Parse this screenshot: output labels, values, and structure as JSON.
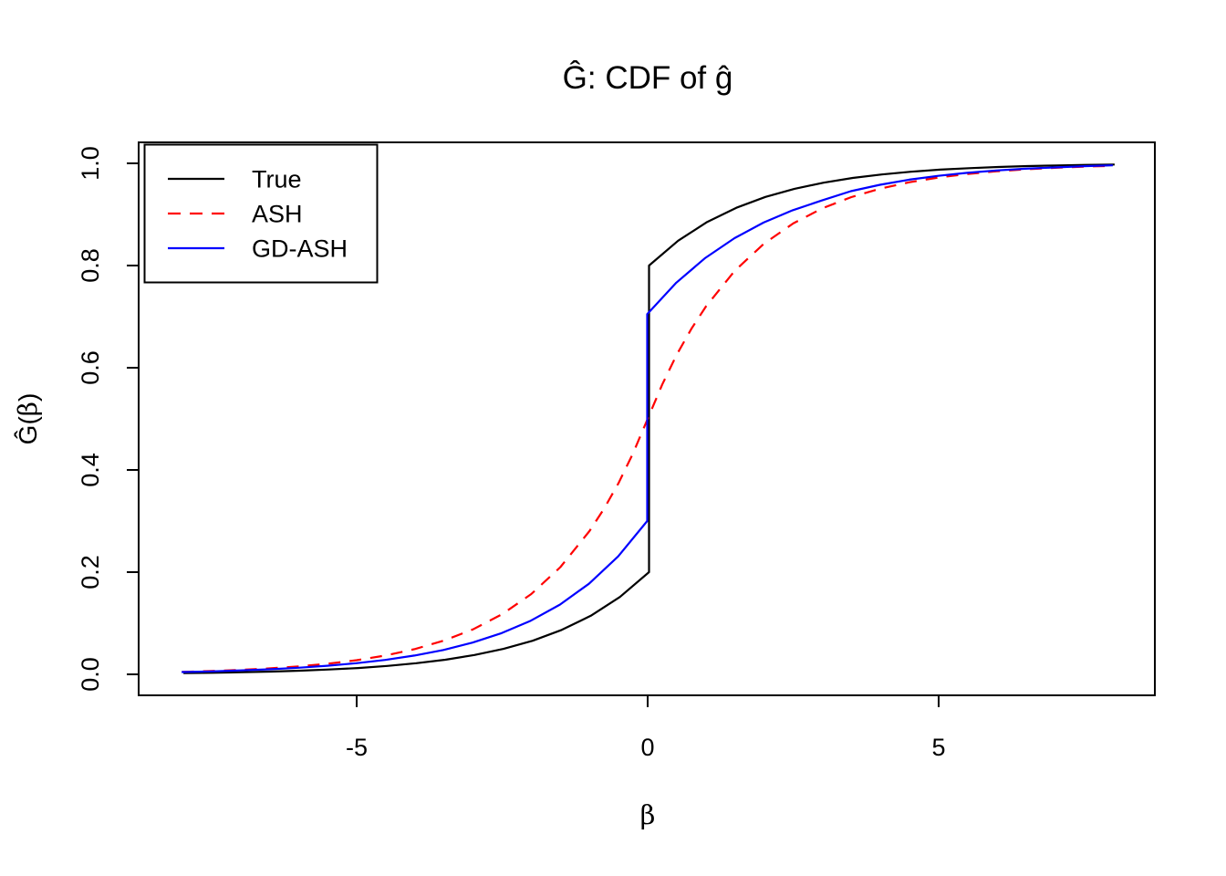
{
  "figure": {
    "title": "Ĝ: CDF of ĝ",
    "background": "#FFFFFF",
    "frame_color": "#000000"
  },
  "axes": {
    "x_label": "β",
    "y_label": "Ĝ(β)",
    "y_label_prefix": "Ĝ(",
    "y_label_beta": "β",
    "y_label_suffix": ")",
    "x_ticks": [
      "-5",
      "0",
      "5"
    ],
    "x_tick_values": [
      -5,
      0,
      5
    ],
    "y_ticks": [
      "0.0",
      "0.2",
      "0.4",
      "0.6",
      "0.8",
      "1.0"
    ],
    "y_tick_values": [
      0,
      0.2,
      0.4,
      0.6,
      0.8,
      1.0
    ]
  },
  "legend": {
    "position": "top-left",
    "entries": [
      {
        "label": "True",
        "color": "#000000",
        "linestyle": "solid"
      },
      {
        "label": "ASH",
        "color": "#FF0000",
        "linestyle": "dashed"
      },
      {
        "label": "GD-ASH",
        "color": "#0000FF",
        "linestyle": "solid"
      }
    ]
  },
  "chart_data": {
    "type": "line",
    "title": "Ĝ: CDF of ĝ",
    "xlabel": "β",
    "ylabel": "Ĝ(β)",
    "xlim": [
      -8.75,
      8.72
    ],
    "ylim": [
      -0.041,
      1.041
    ],
    "x_ticks": [
      -5,
      0,
      5
    ],
    "y_ticks": [
      0,
      0.2,
      0.4,
      0.6,
      0.8,
      1.0
    ],
    "grid": false,
    "legend_position": "top-left",
    "series": [
      {
        "name": "True",
        "color": "#000000",
        "linestyle": "solid",
        "description": "True mixture CDF: point mass at 0, jumps from 0.20 to 0.80 at β=0",
        "points": [
          [
            -8,
            0.0024
          ],
          [
            -7.5,
            0.0031
          ],
          [
            -7,
            0.0041
          ],
          [
            -6.5,
            0.0054
          ],
          [
            -6,
            0.0071
          ],
          [
            -5.5,
            0.0094
          ],
          [
            -5,
            0.0124
          ],
          [
            -4.5,
            0.0164
          ],
          [
            -4,
            0.0217
          ],
          [
            -3.5,
            0.0286
          ],
          [
            -3,
            0.0378
          ],
          [
            -2.5,
            0.0499
          ],
          [
            -2,
            0.0658
          ],
          [
            -1.5,
            0.0869
          ],
          [
            -1,
            0.1147
          ],
          [
            -0.5,
            0.1515
          ],
          [
            0,
            0.2
          ],
          [
            0,
            0.8
          ],
          [
            0.5,
            0.8485
          ],
          [
            1,
            0.8853
          ],
          [
            1.5,
            0.9131
          ],
          [
            2,
            0.9342
          ],
          [
            2.5,
            0.9501
          ],
          [
            3,
            0.9622
          ],
          [
            3.5,
            0.9714
          ],
          [
            4,
            0.9783
          ],
          [
            4.5,
            0.9836
          ],
          [
            5,
            0.9876
          ],
          [
            5.5,
            0.9906
          ],
          [
            6,
            0.9929
          ],
          [
            6.5,
            0.9946
          ],
          [
            7,
            0.9959
          ],
          [
            7.5,
            0.9969
          ],
          [
            8,
            0.9977
          ]
        ]
      },
      {
        "name": "ASH",
        "color": "#FF0000",
        "linestyle": "dashed",
        "description": "Smooth estimated CDF passing through (0, 0.5)",
        "points": [
          [
            -8,
            0.0049
          ],
          [
            -7.5,
            0.0065
          ],
          [
            -7,
            0.0087
          ],
          [
            -6.5,
            0.0116
          ],
          [
            -6,
            0.0155
          ],
          [
            -5.5,
            0.0207
          ],
          [
            -5,
            0.0277
          ],
          [
            -4.5,
            0.037
          ],
          [
            -4,
            0.0494
          ],
          [
            -3.5,
            0.066
          ],
          [
            -3,
            0.0881
          ],
          [
            -2.5,
            0.1177
          ],
          [
            -2,
            0.1572
          ],
          [
            -1.5,
            0.2099
          ],
          [
            -1,
            0.2803
          ],
          [
            -0.75,
            0.3239
          ],
          [
            -0.5,
            0.3743
          ],
          [
            -0.25,
            0.4326
          ],
          [
            0,
            0.5
          ],
          [
            0.25,
            0.5674
          ],
          [
            0.5,
            0.6257
          ],
          [
            0.75,
            0.6761
          ],
          [
            1,
            0.7197
          ],
          [
            1.5,
            0.7901
          ],
          [
            2,
            0.8428
          ],
          [
            2.5,
            0.8823
          ],
          [
            3,
            0.9119
          ],
          [
            3.5,
            0.934
          ],
          [
            4,
            0.9506
          ],
          [
            4.5,
            0.963
          ],
          [
            5,
            0.9723
          ],
          [
            5.5,
            0.9793
          ],
          [
            6,
            0.9845
          ],
          [
            6.5,
            0.9884
          ],
          [
            7,
            0.9913
          ],
          [
            7.5,
            0.9935
          ],
          [
            8,
            0.9951
          ]
        ]
      },
      {
        "name": "GD-ASH",
        "color": "#0000FF",
        "linestyle": "solid",
        "description": "Estimated CDF with point mass at 0, jumps from 0.30 to 0.705 at β=0",
        "points": [
          [
            -8,
            0.0045
          ],
          [
            -7.5,
            0.0058
          ],
          [
            -7,
            0.0076
          ],
          [
            -6.5,
            0.0099
          ],
          [
            -6,
            0.0128
          ],
          [
            -5.5,
            0.0167
          ],
          [
            -5,
            0.0217
          ],
          [
            -4.5,
            0.0282
          ],
          [
            -4,
            0.0367
          ],
          [
            -3.5,
            0.0477
          ],
          [
            -3,
            0.0621
          ],
          [
            -2.5,
            0.0807
          ],
          [
            -2,
            0.105
          ],
          [
            -1.5,
            0.1365
          ],
          [
            -1,
            0.1774
          ],
          [
            -0.5,
            0.2307
          ],
          [
            0,
            0.3
          ],
          [
            0,
            0.705
          ],
          [
            0.5,
            0.7665
          ],
          [
            1,
            0.815
          ],
          [
            1.5,
            0.8536
          ],
          [
            2,
            0.8841
          ],
          [
            2.5,
            0.9083
          ],
          [
            3,
            0.9274
          ],
          [
            3.5,
            0.9455
          ],
          [
            4,
            0.958
          ],
          [
            4.5,
            0.968
          ],
          [
            5,
            0.9755
          ],
          [
            5.5,
            0.9815
          ],
          [
            6,
            0.986
          ],
          [
            6.5,
            0.9895
          ],
          [
            7,
            0.992
          ],
          [
            7.5,
            0.9945
          ],
          [
            8,
            0.996
          ]
        ]
      }
    ]
  }
}
